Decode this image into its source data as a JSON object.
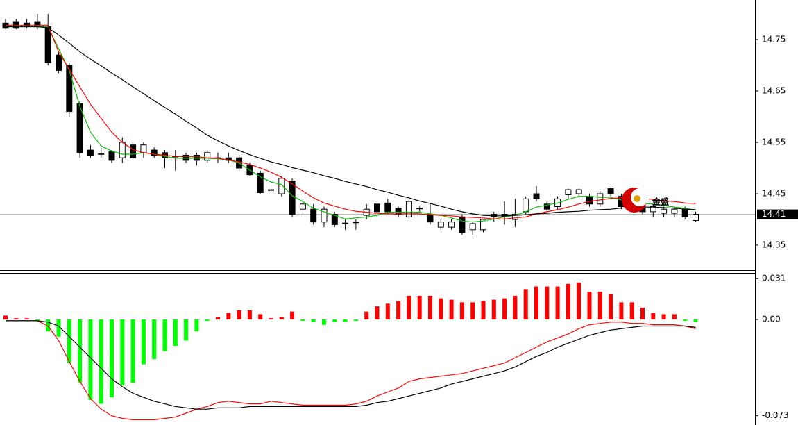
{
  "chart_data": [
    {
      "type": "candlestick",
      "open": [
        14.782,
        14.785,
        14.782,
        14.785,
        14.775,
        14.72,
        14.7,
        14.625,
        14.535,
        14.528,
        14.532,
        14.52,
        14.545,
        14.53,
        14.535,
        14.53,
        14.523,
        14.525,
        14.525,
        14.515,
        14.52,
        14.52,
        14.52,
        14.505,
        14.49,
        14.458,
        14.45,
        14.475,
        14.42,
        14.42,
        14.395,
        14.41,
        14.393,
        14.395,
        14.408,
        14.43,
        14.432,
        14.422,
        14.405,
        14.422,
        14.41,
        14.385,
        14.385,
        14.405,
        14.38,
        14.38,
        14.41,
        14.41,
        14.4,
        14.415,
        14.45,
        14.43,
        14.425,
        14.448,
        14.45,
        14.445,
        14.43,
        14.46,
        14.445,
        14.43,
        14.425,
        14.415,
        14.412,
        14.412,
        14.42,
        14.398
      ],
      "high": [
        14.79,
        14.79,
        14.79,
        14.8,
        14.8,
        14.725,
        14.705,
        14.63,
        14.545,
        14.54,
        14.535,
        14.56,
        14.55,
        14.55,
        14.54,
        14.535,
        14.535,
        14.53,
        14.53,
        14.535,
        14.53,
        14.53,
        14.525,
        14.51,
        14.495,
        14.47,
        14.485,
        14.48,
        14.44,
        14.43,
        14.425,
        14.415,
        14.4,
        14.4,
        14.43,
        14.435,
        14.44,
        14.425,
        14.44,
        14.425,
        14.43,
        14.4,
        14.4,
        14.41,
        14.395,
        14.4,
        14.415,
        14.435,
        14.44,
        14.445,
        14.465,
        14.435,
        14.445,
        14.46,
        14.46,
        14.45,
        14.455,
        14.462,
        14.45,
        14.44,
        14.43,
        14.43,
        14.425,
        14.425,
        14.425,
        14.415
      ],
      "low": [
        14.77,
        14.77,
        14.772,
        14.77,
        14.7,
        14.685,
        14.6,
        14.52,
        14.52,
        14.52,
        14.51,
        14.51,
        14.515,
        14.52,
        14.52,
        14.5,
        14.495,
        14.51,
        14.505,
        14.51,
        14.51,
        14.51,
        14.495,
        14.485,
        14.45,
        14.45,
        14.445,
        14.405,
        14.41,
        14.39,
        14.385,
        14.385,
        14.38,
        14.38,
        14.4,
        14.41,
        14.41,
        14.405,
        14.4,
        14.415,
        14.39,
        14.38,
        14.38,
        14.37,
        14.37,
        14.375,
        14.395,
        14.39,
        14.385,
        14.41,
        14.435,
        14.415,
        14.42,
        14.44,
        14.445,
        14.425,
        14.425,
        14.445,
        14.42,
        14.415,
        14.41,
        14.405,
        14.405,
        14.405,
        14.4,
        14.395
      ],
      "close": [
        14.772,
        14.772,
        14.775,
        14.775,
        14.705,
        14.69,
        14.61,
        14.53,
        14.525,
        14.527,
        14.515,
        14.55,
        14.52,
        14.545,
        14.525,
        14.52,
        14.522,
        14.515,
        14.515,
        14.53,
        14.519,
        14.515,
        14.5,
        14.487,
        14.452,
        14.457,
        14.48,
        14.41,
        14.43,
        14.395,
        14.42,
        14.39,
        14.392,
        14.394,
        14.42,
        14.415,
        14.415,
        14.41,
        14.435,
        14.421,
        14.395,
        14.395,
        14.395,
        14.375,
        14.392,
        14.4,
        14.405,
        14.405,
        14.41,
        14.44,
        14.44,
        14.42,
        14.44,
        14.458,
        14.458,
        14.43,
        14.45,
        14.45,
        14.425,
        14.42,
        14.415,
        14.425,
        14.42,
        14.42,
        14.405,
        14.41
      ],
      "up_color": "#ffffff",
      "down_color": "#000000",
      "series": [
        {
          "color": "#00c000",
          "values": [
            14.775,
            14.775,
            14.775,
            14.775,
            14.775,
            14.732,
            14.69,
            14.62,
            14.57,
            14.543,
            14.533,
            14.527,
            14.527,
            14.53,
            14.527,
            14.523,
            14.519,
            14.519,
            14.519,
            14.519,
            14.518,
            14.516,
            14.51,
            14.496,
            14.483,
            14.473,
            14.468,
            14.446,
            14.435,
            14.422,
            14.415,
            14.408,
            14.401,
            14.403,
            14.405,
            14.408,
            14.414,
            14.414,
            14.414,
            14.414,
            14.411,
            14.408,
            14.403,
            14.397,
            14.395,
            14.397,
            14.401,
            14.405,
            14.408,
            14.415,
            14.424,
            14.428,
            14.432,
            14.439,
            14.445,
            14.445,
            14.443,
            14.443,
            14.438,
            14.432,
            14.431,
            14.43,
            14.427,
            14.424,
            14.422,
            14.418
          ]
        },
        {
          "color": "#ff0000",
          "values": [
            14.778,
            14.778,
            14.778,
            14.778,
            14.778,
            14.726,
            14.692,
            14.658,
            14.624,
            14.597,
            14.57,
            14.55,
            14.536,
            14.53,
            14.527,
            14.525,
            14.523,
            14.522,
            14.522,
            14.52,
            14.519,
            14.516,
            14.512,
            14.507,
            14.5,
            14.492,
            14.482,
            14.469,
            14.455,
            14.442,
            14.432,
            14.426,
            14.42,
            14.416,
            14.414,
            14.412,
            14.411,
            14.411,
            14.411,
            14.411,
            14.409,
            14.408,
            14.407,
            14.405,
            14.404,
            14.403,
            14.401,
            14.401,
            14.403,
            14.405,
            14.411,
            14.415,
            14.419,
            14.424,
            14.43,
            14.435,
            14.438,
            14.441,
            14.442,
            14.442,
            14.441,
            14.439,
            14.436,
            14.435,
            14.432,
            14.431
          ]
        },
        {
          "color": "#000000",
          "values": [
            14.775,
            14.775,
            14.775,
            14.775,
            14.773,
            14.759,
            14.743,
            14.726,
            14.712,
            14.699,
            14.685,
            14.672,
            14.658,
            14.645,
            14.631,
            14.618,
            14.605,
            14.591,
            14.578,
            14.564,
            14.553,
            14.543,
            14.534,
            14.526,
            14.519,
            14.512,
            14.507,
            14.501,
            14.496,
            14.491,
            14.485,
            14.48,
            14.474,
            14.469,
            14.464,
            14.458,
            14.453,
            14.447,
            14.442,
            14.436,
            14.431,
            14.426,
            14.42,
            14.415,
            14.411,
            14.408,
            14.407,
            14.407,
            14.408,
            14.409,
            14.411,
            14.412,
            14.414,
            14.415,
            14.416,
            14.418,
            14.419,
            14.42,
            14.422,
            14.423,
            14.424,
            14.424,
            14.423,
            14.422,
            14.42,
            14.419
          ]
        }
      ],
      "ylim": [
        14.3,
        14.827
      ],
      "yticks": [
        14.35,
        14.45,
        14.55,
        14.65,
        14.75
      ],
      "last_price": 14.41,
      "watermark": "金盛"
    },
    {
      "type": "bar",
      "values": [
        0.003,
        0.001,
        0.001,
        -0.001,
        -0.009,
        -0.013,
        -0.033,
        -0.048,
        -0.061,
        -0.064,
        -0.059,
        -0.05,
        -0.048,
        -0.034,
        -0.03,
        -0.024,
        -0.02,
        -0.016,
        -0.009,
        -0.001,
        0.002,
        0.005,
        0.007,
        0.007,
        0.004,
        0.001,
        0.002,
        0.006,
        -0.001,
        -0.002,
        -0.004,
        -0.002,
        -0.002,
        -0.001,
        0.006,
        0.01,
        0.012,
        0.014,
        0.018,
        0.018,
        0.018,
        0.016,
        0.015,
        0.013,
        0.013,
        0.014,
        0.015,
        0.016,
        0.018,
        0.023,
        0.025,
        0.025,
        0.025,
        0.027,
        0.028,
        0.021,
        0.021,
        0.019,
        0.013,
        0.013,
        0.009,
        0.005,
        0.004,
        0.004,
        -0.001,
        -0.002
      ],
      "up_color": "#ff0000",
      "down_color": "#00ff00",
      "series": [
        {
          "color": "#ff0000",
          "values": [
            -0.001,
            -0.001,
            -0.001,
            -0.001,
            -0.005,
            -0.016,
            -0.032,
            -0.047,
            -0.06,
            -0.068,
            -0.073,
            -0.075,
            -0.076,
            -0.076,
            -0.076,
            -0.075,
            -0.074,
            -0.071,
            -0.068,
            -0.066,
            -0.063,
            -0.062,
            -0.063,
            -0.064,
            -0.064,
            -0.062,
            -0.063,
            -0.064,
            -0.065,
            -0.065,
            -0.065,
            -0.065,
            -0.065,
            -0.064,
            -0.062,
            -0.058,
            -0.055,
            -0.052,
            -0.047,
            -0.045,
            -0.044,
            -0.043,
            -0.042,
            -0.041,
            -0.039,
            -0.037,
            -0.035,
            -0.033,
            -0.029,
            -0.025,
            -0.021,
            -0.017,
            -0.014,
            -0.011,
            -0.007,
            -0.004,
            -0.003,
            -0.002,
            -0.002,
            -0.003,
            -0.003,
            -0.004,
            -0.004,
            -0.004,
            -0.005,
            -0.007
          ]
        },
        {
          "color": "#000000",
          "values": [
            -0.001,
            -0.001,
            -0.001,
            -0.001,
            -0.002,
            -0.005,
            -0.013,
            -0.021,
            -0.029,
            -0.037,
            -0.045,
            -0.051,
            -0.056,
            -0.059,
            -0.062,
            -0.064,
            -0.066,
            -0.067,
            -0.068,
            -0.068,
            -0.067,
            -0.067,
            -0.067,
            -0.066,
            -0.066,
            -0.066,
            -0.066,
            -0.066,
            -0.066,
            -0.066,
            -0.066,
            -0.066,
            -0.066,
            -0.066,
            -0.065,
            -0.063,
            -0.062,
            -0.06,
            -0.058,
            -0.056,
            -0.054,
            -0.052,
            -0.049,
            -0.047,
            -0.045,
            -0.043,
            -0.041,
            -0.039,
            -0.036,
            -0.032,
            -0.028,
            -0.025,
            -0.021,
            -0.018,
            -0.015,
            -0.012,
            -0.01,
            -0.008,
            -0.007,
            -0.006,
            -0.005,
            -0.005,
            -0.005,
            -0.005,
            -0.005,
            -0.006
          ]
        }
      ],
      "ylim": [
        -0.08,
        0.0353
      ],
      "yticks": [
        0.031,
        {
          "value": 0,
          "label": "0.00"
        },
        -0.073
      ]
    }
  ]
}
